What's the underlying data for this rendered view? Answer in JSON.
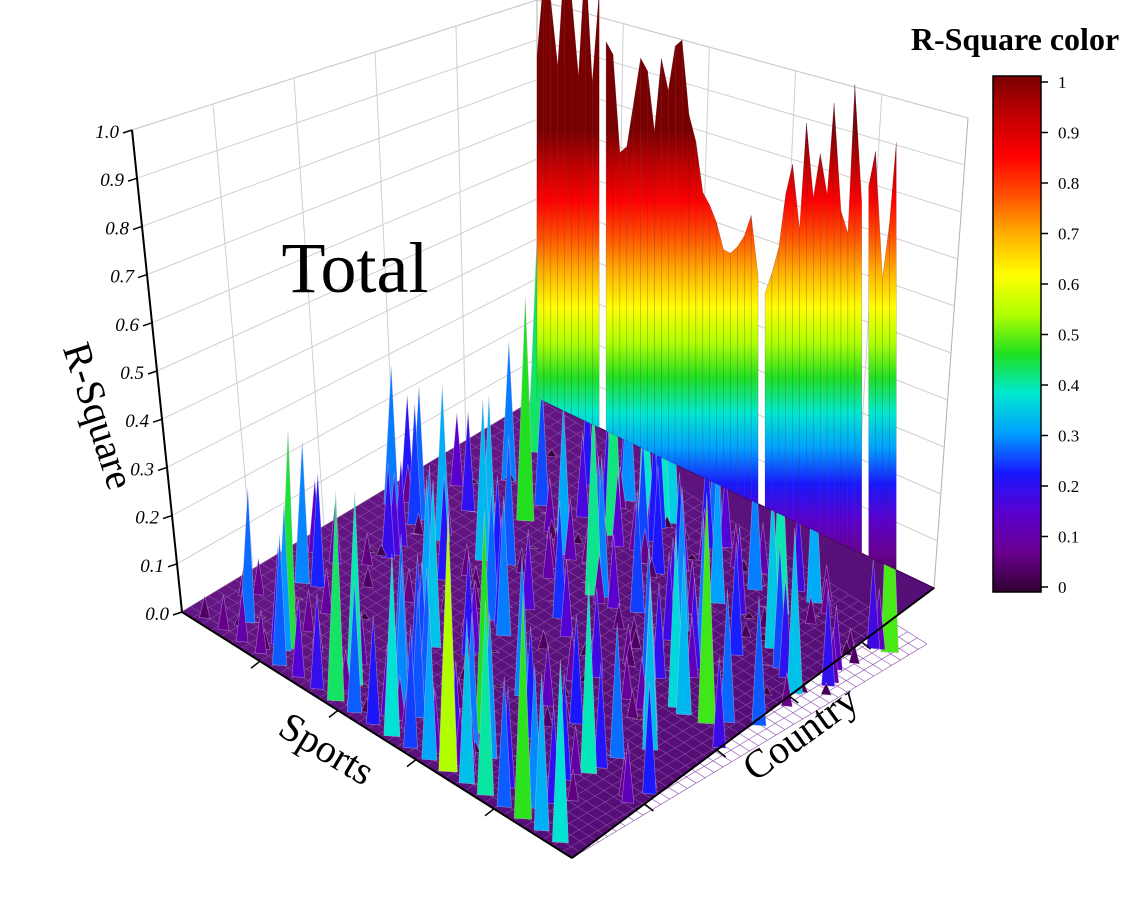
{
  "chart_data": {
    "type": "surface3d",
    "title": "Total",
    "xlabel": "Sports",
    "ylabel": "Country",
    "zlabel": "R-Square",
    "zlim": [
      0,
      1
    ],
    "z_ticks": [
      "0.0",
      "0.1",
      "0.2",
      "0.3",
      "0.4",
      "0.5",
      "0.6",
      "0.7",
      "0.8",
      "0.9",
      "1.0"
    ],
    "grid": true,
    "colorbar": {
      "title": "R-Square color",
      "range": [
        0,
        1
      ],
      "ticks": [
        "0",
        "0.1",
        "0.2",
        "0.3",
        "0.4",
        "0.5",
        "0.6",
        "0.7",
        "0.8",
        "0.9",
        "1"
      ],
      "colormap": [
        "#300030",
        "#6a0090",
        "#5a00d0",
        "#1818ff",
        "#00a0ff",
        "#00e8d0",
        "#20e020",
        "#b0ff00",
        "#ffff00",
        "#ffb000",
        "#ff5000",
        "#ff0000",
        "#c00000",
        "#7a0000"
      ]
    },
    "back_wall_country_profile": [
      0.72,
      0.9,
      0.85,
      0.72,
      0.96,
      0.88,
      0.72,
      0.98,
      0.72,
      0.92,
      0.82,
      0.8,
      0.6,
      0.62,
      0.72,
      0.82,
      0.8,
      0.68,
      0.84,
      0.78,
      0.88,
      0.9,
      0.75,
      0.7,
      0.6,
      0.58,
      0.55,
      0.5,
      0.5,
      0.52,
      0.55,
      0.6,
      0.48,
      0.45,
      0.5,
      0.56,
      0.68,
      0.75,
      0.62,
      0.85,
      0.7,
      0.8,
      0.72,
      0.92,
      0.7,
      0.66,
      0.98,
      0.74,
      0.78,
      0.86,
      0.6,
      0.72,
      0.9
    ],
    "back_wall_gaps": [
      9,
      32,
      47
    ],
    "sports_wall_profile": [
      0.05,
      0.08,
      0.12,
      0.1,
      0.3,
      0.18,
      0.22,
      0.48,
      0.3,
      0.25,
      0.42,
      0.28,
      0.35,
      0.6,
      0.38,
      0.45,
      0.3,
      0.52,
      0.36,
      0.42
    ],
    "floor_peak_level": 0.35
  }
}
